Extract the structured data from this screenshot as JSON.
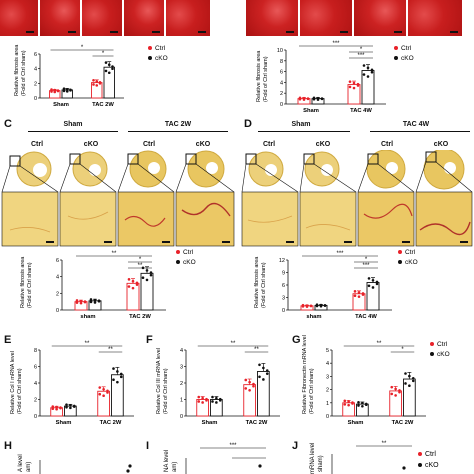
{
  "panels_top": {
    "A_label": "",
    "B_label": ""
  },
  "panel_c": {
    "letter": "C",
    "group1": "Sham",
    "group2": "TAC 2W",
    "ctrl": "Ctrl",
    "cko": "cKO"
  },
  "panel_d": {
    "letter": "D",
    "group1": "Sham",
    "group2": "TAC 4W",
    "ctrl": "Ctrl",
    "cko": "cKO"
  },
  "panel_e": {
    "letter": "E"
  },
  "panel_f": {
    "letter": "F"
  },
  "panel_g": {
    "letter": "G"
  },
  "panel_h": {
    "letter": "H"
  },
  "panel_i": {
    "letter": "I"
  },
  "panel_j": {
    "letter": "J"
  },
  "legend": {
    "ctrl": "Ctrl",
    "cko": "cKO"
  },
  "colors": {
    "ctrl": "#e8222a",
    "cko": "#111111",
    "red_stain": "#c81e1e",
    "yellow_stain": "#e8c65c"
  },
  "chart_data": [
    {
      "id": "top-left",
      "type": "bar",
      "ylabel": "Relative fibrosis area\n(Fold of Ctrl sham)",
      "categories": [
        "Sham",
        "TAC 2W"
      ],
      "series": [
        {
          "name": "Ctrl",
          "values": [
            1.0,
            2.1
          ]
        },
        {
          "name": "cKO",
          "values": [
            1.1,
            4.2
          ]
        }
      ],
      "yticks": [
        "0",
        "2",
        "4",
        "6"
      ],
      "ylim": [
        0,
        6
      ],
      "sig": [
        "*",
        "*"
      ]
    },
    {
      "id": "top-right",
      "type": "bar",
      "ylabel": "Relative fibrosis area\n(Fold of Ctrl sham)",
      "categories": [
        "Sham",
        "TAC 4W"
      ],
      "series": [
        {
          "name": "Ctrl",
          "values": [
            1.0,
            3.6
          ]
        },
        {
          "name": "cKO",
          "values": [
            1.0,
            6.2
          ]
        }
      ],
      "yticks": [
        "0",
        "2",
        "4",
        "6",
        "8",
        "10"
      ],
      "ylim": [
        0,
        10
      ],
      "sig": [
        "***",
        "*",
        "***"
      ]
    },
    {
      "id": "C-chart",
      "type": "bar",
      "ylabel": "Relative fibrosis area\n(Fold of Ctrl sham)",
      "categories": [
        "sham",
        "TAC 2W"
      ],
      "series": [
        {
          "name": "Ctrl",
          "values": [
            1.0,
            3.2
          ]
        },
        {
          "name": "cKO",
          "values": [
            1.1,
            4.4
          ]
        }
      ],
      "yticks": [
        "0",
        "2",
        "4",
        "6"
      ],
      "ylim": [
        0,
        6
      ],
      "sig": [
        "**",
        "*",
        "**"
      ]
    },
    {
      "id": "D-chart",
      "type": "bar",
      "ylabel": "Relative fibrosis area\n(Fold of Ctrl sham)",
      "categories": [
        "sham",
        "TAC 4W"
      ],
      "series": [
        {
          "name": "Ctrl",
          "values": [
            1.0,
            3.9
          ]
        },
        {
          "name": "cKO",
          "values": [
            1.1,
            6.6
          ]
        }
      ],
      "yticks": [
        "0",
        "3",
        "6",
        "9",
        "12"
      ],
      "ylim": [
        0,
        12
      ],
      "sig": [
        "***",
        "*",
        "***"
      ]
    },
    {
      "id": "E-chart",
      "type": "bar",
      "ylabel": "Relative Col I mRNA level\n(Fold of Ctrl sham)",
      "categories": [
        "Sham",
        "TAC 2W"
      ],
      "series": [
        {
          "name": "Ctrl",
          "values": [
            1.0,
            3.0
          ]
        },
        {
          "name": "cKO",
          "values": [
            1.2,
            5.0
          ]
        }
      ],
      "yticks": [
        "0",
        "2",
        "4",
        "6",
        "8"
      ],
      "ylim": [
        0,
        8
      ],
      "sig": [
        "**",
        "**"
      ]
    },
    {
      "id": "F-chart",
      "type": "bar",
      "ylabel": "Relative Col III mRNA level\n(Fold of Ctrl sham)",
      "categories": [
        "Sham",
        "TAC 2W"
      ],
      "series": [
        {
          "name": "Ctrl",
          "values": [
            1.0,
            1.9
          ]
        },
        {
          "name": "cKO",
          "values": [
            1.0,
            2.7
          ]
        }
      ],
      "yticks": [
        "0",
        "1",
        "2",
        "3",
        "4"
      ],
      "ylim": [
        0,
        4
      ],
      "sig": [
        "**",
        "**"
      ]
    },
    {
      "id": "G-chart",
      "type": "bar",
      "ylabel": "Relative Fibronectin mRNA level\n(Fold of Ctrl sham)",
      "categories": [
        "Sham",
        "TAC 2W"
      ],
      "series": [
        {
          "name": "Ctrl",
          "values": [
            1.0,
            1.9
          ]
        },
        {
          "name": "cKO",
          "values": [
            0.9,
            2.8
          ]
        }
      ],
      "yticks": [
        "0",
        "1",
        "2",
        "3",
        "4",
        "5"
      ],
      "ylim": [
        0,
        5
      ],
      "sig": [
        "**",
        "*"
      ]
    }
  ],
  "bottom_labels": {
    "h_ylabel": "A level",
    "h_ylabel2": "am)",
    "i_ylabel": "NA level",
    "i_ylabel2": "am)",
    "j_ylabel": "mRNA level",
    "j_ylabel2": "sham)",
    "i_sig": "***",
    "j_sig": "**"
  }
}
